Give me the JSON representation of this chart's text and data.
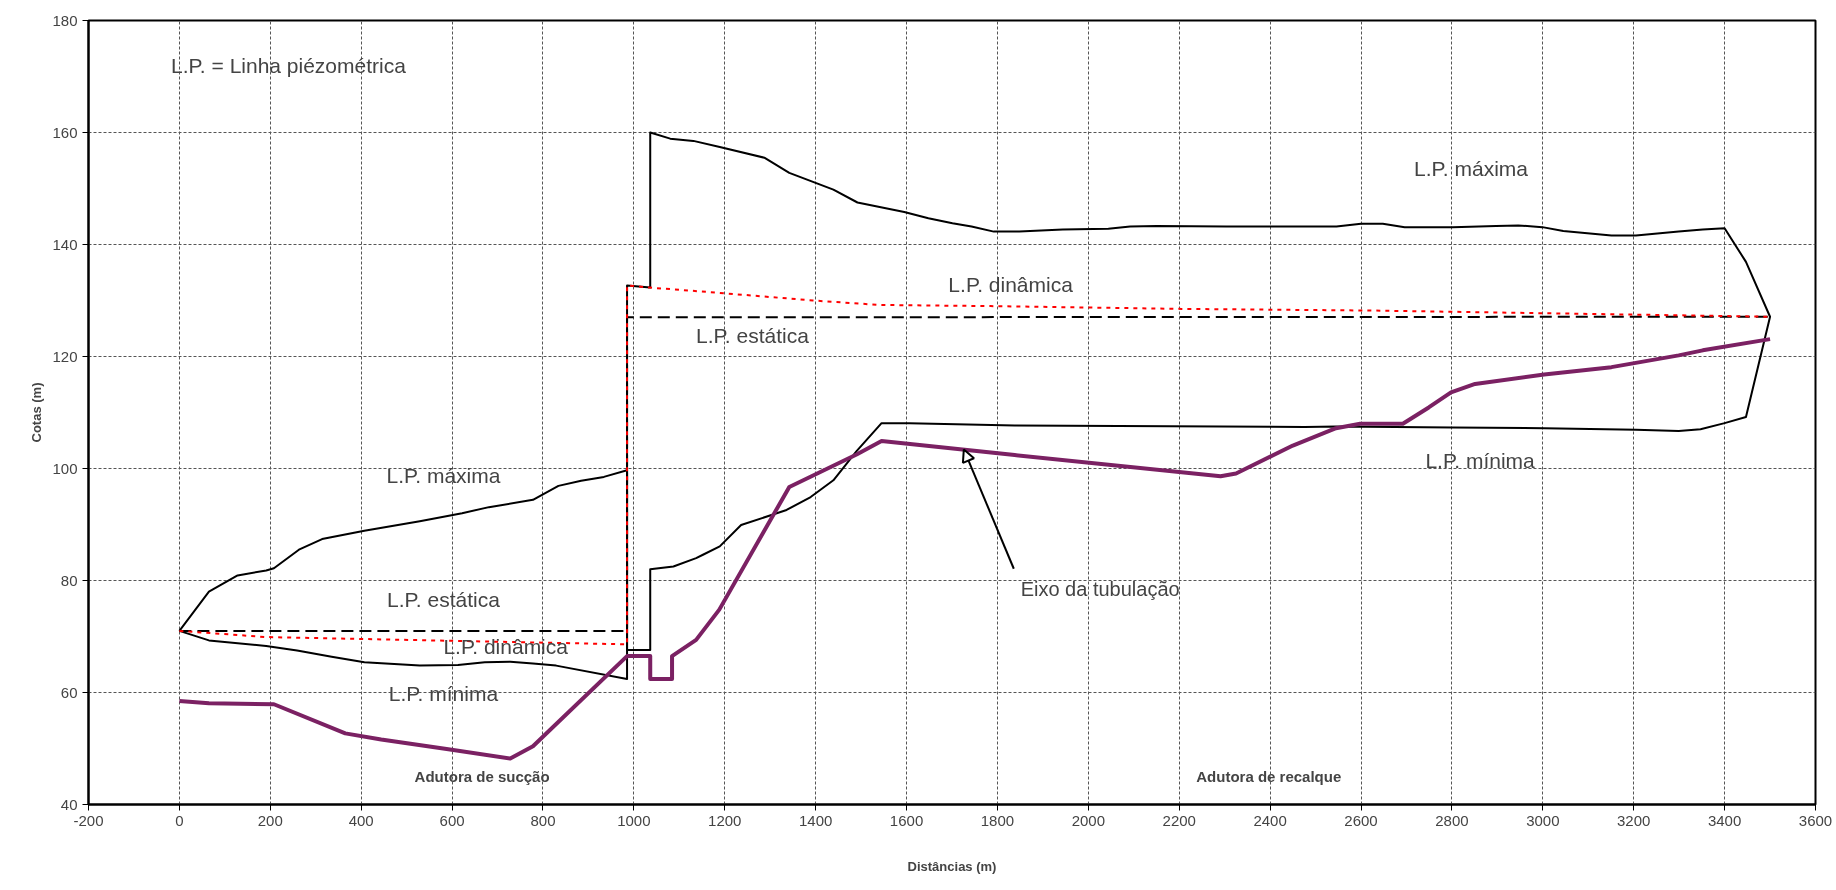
{
  "chart_data": {
    "type": "line",
    "xlabel": "Distâncias (m)",
    "ylabel": "Cotas (m)",
    "xlim": [
      -200,
      3600
    ],
    "ylim": [
      40,
      180
    ],
    "xticks": [
      -200,
      0,
      200,
      400,
      600,
      800,
      1000,
      1200,
      1400,
      1600,
      1800,
      2000,
      2200,
      2400,
      2600,
      2800,
      3000,
      3200,
      3400,
      3600
    ],
    "yticks": [
      40,
      60,
      80,
      100,
      120,
      140,
      160,
      180
    ],
    "grid": true,
    "marker": "none",
    "series": [
      {
        "color": "#000000",
        "line_style": "solid",
        "x": [
          0,
          65,
          128,
          191,
          208,
          263,
          314,
          407,
          529,
          622,
          681,
          778,
          834,
          884,
          934,
          985
        ],
        "values": [
          71,
          78,
          80.9,
          81.8,
          82.2,
          85.5,
          87.4,
          88.9,
          90.6,
          92,
          93.1,
          94.4,
          96.9,
          97.8,
          98.5,
          99.7
        ]
      },
      {
        "color": "#000000",
        "line_style": "solid",
        "x": [
          0,
          65,
          191,
          259,
          335,
          407,
          529,
          613,
          672,
          728,
          778,
          829,
          985,
          985
        ],
        "values": [
          71,
          69.3,
          68.3,
          67.5,
          66.4,
          65.4,
          64.8,
          64.9,
          65.4,
          65.5,
          65.2,
          64.8,
          62.4,
          99.7
        ]
      },
      {
        "color": "#000000",
        "line_style": "solid",
        "x": [
          1036,
          1036,
          1080,
          1131,
          1189,
          1287,
          1342,
          1439,
          1492,
          1595,
          1648,
          1701,
          1743,
          1792,
          1848,
          1944,
          2044,
          2092,
          2150,
          2304,
          2546,
          2600,
          2648,
          2696,
          2802,
          2897,
          2946,
          2999,
          3045,
          3151,
          3205,
          3299,
          3352,
          3400,
          3447,
          3500,
          3447,
          3400,
          3347,
          3299,
          3205,
          3003,
          2802,
          2546,
          2476,
          1838,
          1606,
          1545,
          1490,
          1439,
          1389,
          1336,
          1236,
          1189,
          1152,
          1137,
          1087,
          1036,
          1036,
          985,
          985,
          1036,
          1036
        ],
        "values": [
          132.3,
          160,
          158.9,
          158.5,
          157.4,
          155.5,
          152.8,
          149.8,
          147.5,
          145.8,
          144.7,
          143.8,
          143.2,
          142.3,
          142.3,
          142.7,
          142.8,
          143.2,
          143.3,
          143.2,
          143.2,
          143.7,
          143.7,
          143.1,
          143.1,
          143.3,
          143.4,
          143.1,
          142.4,
          141.6,
          141.6,
          142.3,
          142.7,
          142.9,
          136.9,
          127.1,
          109.2,
          108.1,
          107,
          106.7,
          106.9,
          107.2,
          107.3,
          107.5,
          107.4,
          107.7,
          108.1,
          108.1,
          103.1,
          97.9,
          94.9,
          92.6,
          89.9,
          86.1,
          84.6,
          84,
          82.5,
          82,
          67.6,
          67.6,
          132.7,
          132.3,
          160
        ]
      },
      {
        "color": "#000000",
        "line_style": "dashed",
        "x": [
          0,
          985,
          985,
          3500
        ],
        "values": [
          71,
          71,
          127,
          127.1
        ]
      },
      {
        "color": "#ff0000",
        "line_style": "dotted",
        "x": [
          0,
          191,
          985,
          985,
          1036,
          1167,
          1394,
          1542,
          1785,
          2206,
          2630,
          3500
        ],
        "values": [
          71,
          69.9,
          68.6,
          132.7,
          132.3,
          131.5,
          130,
          129.2,
          129,
          128.5,
          128.2,
          127.1
        ]
      },
      {
        "color": "#7b2163",
        "line_style": "solid",
        "x": [
          0,
          65,
          208,
          365,
          444,
          588,
          728,
          778,
          985,
          1036,
          1036,
          1084,
          1084,
          1137,
          1188,
          1342,
          1490,
          1545,
          1838,
          2291,
          2325,
          2450,
          2545,
          2598,
          2692,
          2749,
          2798,
          2851,
          3003,
          3151,
          3299,
          3352,
          3500
        ],
        "values": [
          58.5,
          58.1,
          57.9,
          52.7,
          51.6,
          49.9,
          48.2,
          50.4,
          66.5,
          66.5,
          62.4,
          62.4,
          66.5,
          69.4,
          74.8,
          96.7,
          102.5,
          104.9,
          102.4,
          98.6,
          99.1,
          104.1,
          107.2,
          108,
          108,
          110.9,
          113.6,
          115.1,
          116.8,
          118.1,
          120.2,
          121.1,
          123.1
        ]
      }
    ],
    "annotations": [
      "L.P. = Linha piézométrica",
      "L.P. máxima",
      "L.P. estática",
      "L.P. dinâmica",
      "L.P. mínima",
      "L.P. máxima",
      "L.P. dinâmica",
      "L.P. estática",
      "L.P. mínima",
      {
        "text": "Eixo da tubulação",
        "x": 1726,
        "y": 103.4
      },
      "Adutora de sucção",
      "Adutora de recalque"
    ]
  }
}
